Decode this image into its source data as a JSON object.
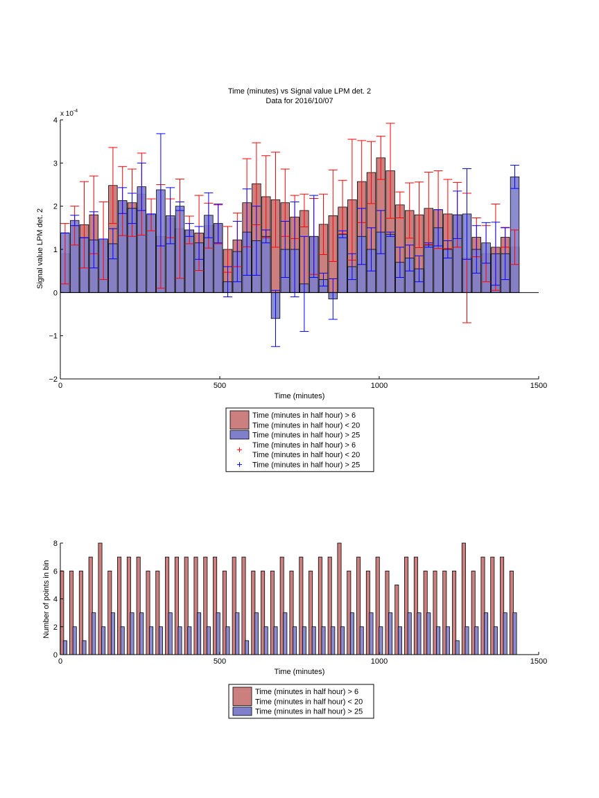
{
  "chart_data": [
    {
      "type": "bar",
      "title": "Time (minutes) vs Signal value LPM det. 2",
      "subtitle": "Data for 2016/10/07",
      "xlabel": "Time (minutes)",
      "ylabel": "Signal value LPM det. 2",
      "exponent_label": "x 10",
      "exponent_power": "-4",
      "xlim": [
        0,
        1500
      ],
      "ylim": [
        -2,
        4
      ],
      "xticks": [
        0,
        500,
        1000,
        1500
      ],
      "yticks": [
        -2,
        -1,
        0,
        1,
        2,
        3,
        4
      ],
      "grid": false,
      "legend_position": "below",
      "legend": [
        {
          "kind": "patch",
          "color": "#cc7f7f",
          "lines": [
            "Time (minutes in half hour) > 6",
            "Time (minutes in half hour) < 20"
          ]
        },
        {
          "kind": "patch",
          "color": "#7f7fcc",
          "lines": [
            "Time (minutes in half hour) > 25"
          ]
        },
        {
          "kind": "marker",
          "color": "#ff0000",
          "lines": [
            "Time (minutes in half hour) > 6",
            "Time (minutes in half hour) < 20"
          ]
        },
        {
          "kind": "marker",
          "color": "#0000ff",
          "lines": [
            "Time (minutes in half hour) > 25"
          ]
        }
      ],
      "series": [
        {
          "color": "#cc7f7f",
          "error_color": "#ff0000",
          "x": [
            15,
            45,
            75,
            105,
            135,
            165,
            195,
            225,
            255,
            285,
            315,
            345,
            375,
            405,
            435,
            465,
            495,
            525,
            555,
            585,
            615,
            645,
            675,
            705,
            735,
            765,
            795,
            825,
            855,
            885,
            915,
            945,
            975,
            1005,
            1035,
            1065,
            1095,
            1125,
            1155,
            1185,
            1215,
            1245,
            1275,
            1305,
            1335,
            1365,
            1395,
            1425
          ],
          "values": [
            0.9,
            1.55,
            1.57,
            1.8,
            1.2,
            2.48,
            2.12,
            2.08,
            2.28,
            1.8,
            1.3,
            1.72,
            1.48,
            1.45,
            1.38,
            1.55,
            1.58,
            1.0,
            1.22,
            2.08,
            2.52,
            2.22,
            2.15,
            2.08,
            1.75,
            1.9,
            1.3,
            1.58,
            1.78,
            1.98,
            2.15,
            2.57,
            2.78,
            3.12,
            2.82,
            2.03,
            1.9,
            1.8,
            1.95,
            1.92,
            1.82,
            1.8,
            0.8,
            1.28,
            0.9,
            1.05,
            1.28,
            1.05
          ],
          "errors": [
            0.7,
            0.45,
            1.0,
            0.9,
            0.9,
            0.88,
            0.8,
            0.78,
            0.95,
            0.37,
            1.2,
            0.45,
            1.15,
            0.32,
            0.87,
            0.52,
            0.45,
            0.53,
            0.62,
            1.02,
            0.95,
            0.95,
            1.1,
            0.78,
            0.5,
            0.38,
            0.88,
            0.7,
            1.06,
            0.62,
            1.4,
            0.95,
            0.72,
            0.5,
            1.1,
            0.3,
            0.64,
            0.76,
            0.84,
            0.9,
            0.8,
            0.75,
            1.5,
            0.45,
            0.65,
            1.0,
            0.23,
            0.4
          ]
        },
        {
          "color": "#7f7fcc",
          "error_color": "#0000ff",
          "x": [
            15,
            45,
            75,
            105,
            135,
            165,
            195,
            225,
            255,
            285,
            315,
            345,
            375,
            405,
            435,
            465,
            495,
            525,
            555,
            585,
            615,
            645,
            675,
            705,
            735,
            765,
            795,
            825,
            855,
            885,
            915,
            945,
            975,
            1005,
            1035,
            1065,
            1095,
            1125,
            1155,
            1185,
            1215,
            1245,
            1275,
            1305,
            1335,
            1365,
            1395,
            1425
          ],
          "values": [
            1.38,
            1.67,
            1.27,
            1.22,
            1.24,
            1.13,
            2.13,
            1.95,
            2.45,
            1.82,
            2.38,
            1.78,
            2.0,
            1.45,
            1.15,
            1.79,
            1.6,
            0.25,
            0.95,
            1.4,
            1.2,
            1.3,
            -0.6,
            1.0,
            1.0,
            0.2,
            1.3,
            0.3,
            -0.15,
            1.35,
            0.6,
            1.3,
            1.0,
            1.4,
            1.35,
            0.7,
            0.8,
            0.55,
            1.1,
            1.5,
            1.0,
            1.8,
            1.82,
            1.0,
            1.15,
            0.9,
            0.9,
            2.68
          ],
          "errors": [
            0.0,
            0.12,
            0.0,
            0.65,
            0.0,
            0.35,
            0.3,
            0.35,
            0.55,
            0.0,
            1.3,
            0.65,
            0.1,
            0.15,
            0.38,
            0.52,
            0.45,
            0.35,
            0.7,
            1.0,
            0.8,
            0.15,
            0.65,
            0.65,
            1.1,
            1.1,
            0.95,
            0.15,
            0.47,
            0.08,
            0.3,
            0.65,
            0.5,
            0.5,
            0.05,
            0.35,
            0.3,
            0.3,
            0.05,
            0.42,
            0.2,
            0.55,
            1.05,
            0.55,
            0.47,
            0.73,
            0.6,
            0.27
          ]
        }
      ]
    },
    {
      "type": "bar",
      "title": "",
      "xlabel": "Time (minutes)",
      "ylabel": "Number of points in bin",
      "xlim": [
        0,
        1500
      ],
      "ylim": [
        0,
        8
      ],
      "xticks": [
        0,
        500,
        1000,
        1500
      ],
      "yticks": [
        0,
        2,
        4,
        6,
        8
      ],
      "grid": false,
      "legend_position": "below",
      "legend": [
        {
          "kind": "patch",
          "color": "#cc7f7f",
          "lines": [
            "Time (minutes in half hour) > 6",
            "Time (minutes in half hour) < 20"
          ]
        },
        {
          "kind": "patch",
          "color": "#7f7fcc",
          "lines": [
            "Time (minutes in half hour) > 25"
          ]
        }
      ],
      "series": [
        {
          "color": "#cc7f7f",
          "x": [
            5,
            35,
            65,
            95,
            125,
            155,
            185,
            215,
            245,
            275,
            305,
            335,
            365,
            395,
            425,
            455,
            485,
            515,
            545,
            575,
            605,
            635,
            665,
            695,
            725,
            755,
            785,
            815,
            845,
            875,
            905,
            935,
            965,
            995,
            1025,
            1055,
            1085,
            1115,
            1145,
            1175,
            1205,
            1235,
            1265,
            1295,
            1325,
            1355,
            1385,
            1415
          ],
          "values": [
            6,
            6,
            6,
            7,
            8,
            6,
            7,
            7,
            7,
            6,
            6,
            7,
            7,
            7,
            7,
            7,
            7,
            6,
            7,
            7,
            6,
            6,
            6,
            7,
            6,
            7,
            6,
            7,
            7,
            8,
            6,
            7,
            6,
            7,
            6,
            5,
            7,
            7,
            6,
            6,
            6,
            6,
            8,
            6,
            7,
            7,
            7,
            6
          ]
        },
        {
          "color": "#7f7fcc",
          "x": [
            15,
            45,
            75,
            105,
            135,
            165,
            195,
            225,
            255,
            285,
            315,
            345,
            375,
            405,
            435,
            465,
            495,
            525,
            555,
            585,
            615,
            645,
            675,
            705,
            735,
            765,
            795,
            825,
            855,
            885,
            915,
            945,
            975,
            1005,
            1035,
            1065,
            1095,
            1125,
            1155,
            1185,
            1215,
            1245,
            1275,
            1305,
            1335,
            1365,
            1395,
            1425
          ],
          "values": [
            1,
            2,
            1,
            3,
            2,
            3,
            2,
            3,
            3,
            2,
            2,
            3,
            2,
            2,
            3,
            2,
            3,
            2,
            3,
            1,
            3,
            2,
            2,
            3,
            2,
            2,
            2,
            2,
            2,
            2,
            3,
            2,
            3,
            2,
            3,
            2,
            3,
            3,
            3,
            2,
            2,
            1,
            2,
            2,
            3,
            2,
            3,
            3
          ]
        }
      ]
    }
  ]
}
